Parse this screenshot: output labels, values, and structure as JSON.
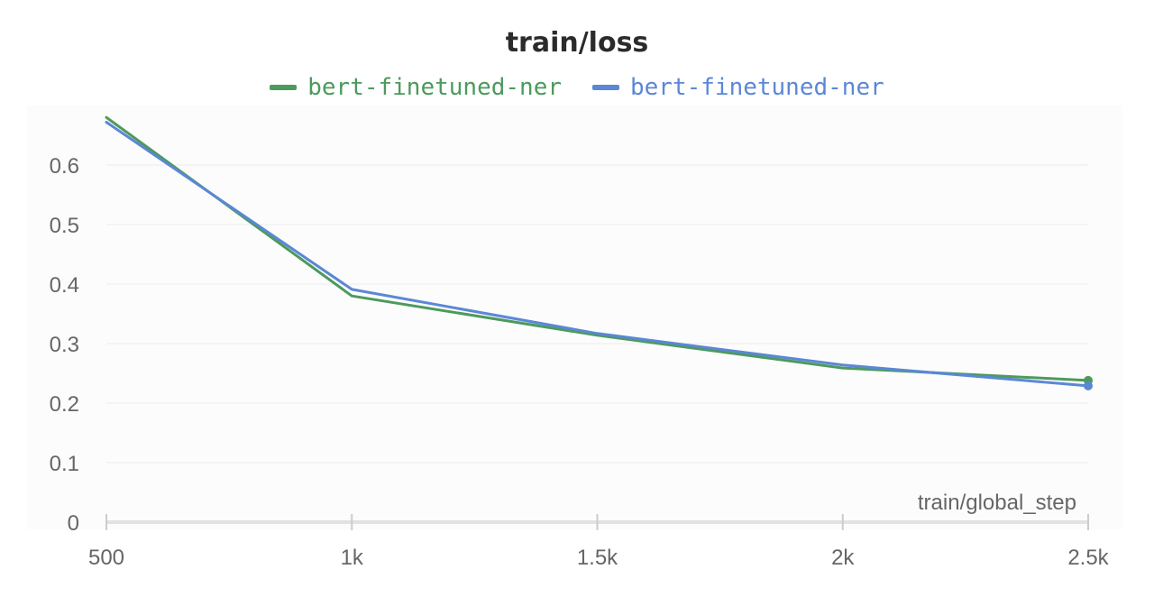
{
  "chart_data": {
    "type": "line",
    "title": "train/loss",
    "xlabel": "train/global_step",
    "ylabel": "",
    "xlim": [
      500,
      2500
    ],
    "ylim": [
      0,
      0.7
    ],
    "x_ticks": [
      500,
      1000,
      1500,
      2000,
      2500
    ],
    "x_tick_labels": [
      "500",
      "1k",
      "1.5k",
      "2k",
      "2.5k"
    ],
    "y_ticks": [
      0,
      0.1,
      0.2,
      0.3,
      0.4,
      0.5,
      0.6
    ],
    "y_tick_labels": [
      "0",
      "0.1",
      "0.2",
      "0.3",
      "0.4",
      "0.5",
      "0.6"
    ],
    "grid": true,
    "legend_position": "top-center",
    "series": [
      {
        "name": "bert-finetuned-ner",
        "color": "#4c9a5c",
        "x": [
          500,
          1000,
          1500,
          2000,
          2500
        ],
        "y": [
          0.68,
          0.38,
          0.314,
          0.259,
          0.238
        ]
      },
      {
        "name": "bert-finetuned-ner",
        "color": "#5b87d6",
        "x": [
          500,
          1000,
          1500,
          2000,
          2500
        ],
        "y": [
          0.672,
          0.391,
          0.317,
          0.264,
          0.229
        ]
      }
    ]
  }
}
